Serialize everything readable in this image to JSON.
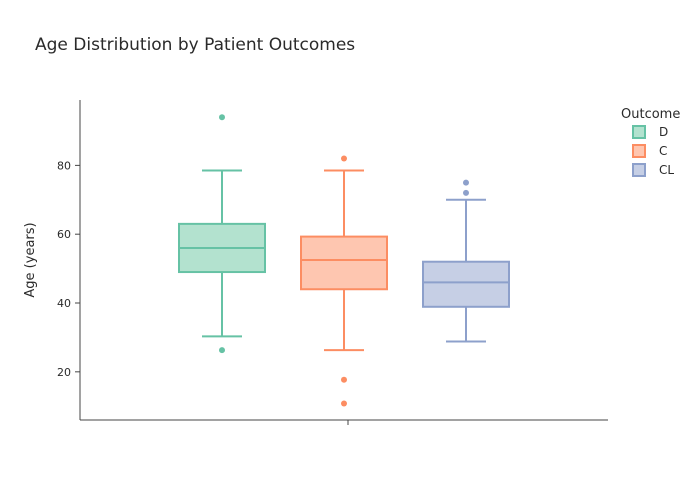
{
  "chart_data": {
    "type": "box",
    "title": "Age Distribution by Patient Outcomes",
    "xlabel": "",
    "ylabel": "Age (years)",
    "ylim": [
      6,
      99
    ],
    "yticks": [
      20,
      40,
      60,
      80
    ],
    "grid": false,
    "legend": {
      "title": "Outcome",
      "placement": "top-right"
    },
    "series": [
      {
        "name": "D",
        "color": "#66c2a5",
        "fill": "#b3e2cf",
        "whisker_low": 30.3,
        "q1": 49,
        "median": 56,
        "q3": 63,
        "whisker_high": 78.5,
        "outliers": [
          94,
          26.3
        ]
      },
      {
        "name": "C",
        "color": "#fc8d62",
        "fill": "#fec6b0",
        "whisker_low": 26.3,
        "q1": 44,
        "median": 52.5,
        "q3": 59.3,
        "whisker_high": 78.5,
        "outliers": [
          82,
          17.7,
          10.8
        ]
      },
      {
        "name": "CL",
        "color": "#8da0cb",
        "fill": "#c6cfe5",
        "whisker_low": 28.8,
        "q1": 38.9,
        "median": 46,
        "q3": 52,
        "whisker_high": 70,
        "outliers": [
          75,
          72
        ]
      }
    ]
  }
}
